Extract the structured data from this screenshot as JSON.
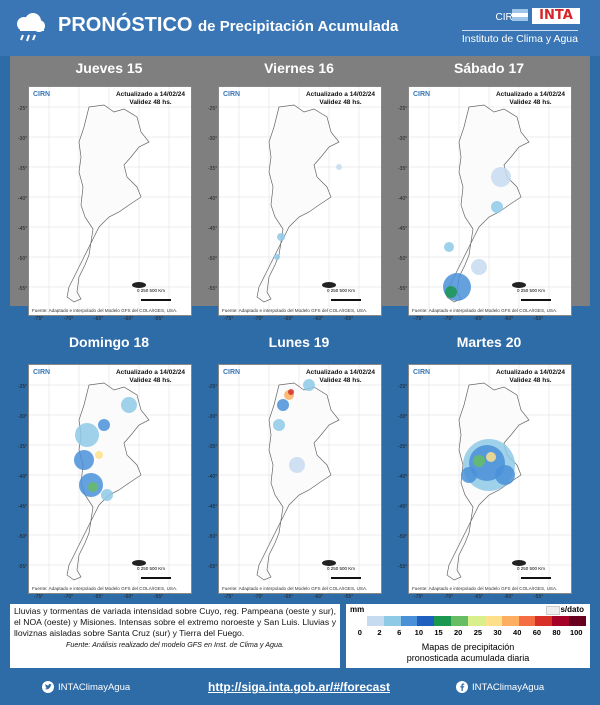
{
  "header": {
    "title_big": "PRONÓSTICO",
    "title_rest": "de Precipitación Acumulada",
    "cirn": "CIRN",
    "institute": "Instituto de Clima y Agua",
    "inta": "INTA",
    "icon": "rain-cloud-icon"
  },
  "panels": [
    {
      "day": "Jueves 15"
    },
    {
      "day": "Viernes 16"
    },
    {
      "day": "Sábado 17"
    },
    {
      "day": "Domingo 18"
    },
    {
      "day": "Lunes 19"
    },
    {
      "day": "Martes 20"
    }
  ],
  "map_common": {
    "logo_cirn": "CIRN",
    "logo_sub": "Instituto de Clima y Agua",
    "updated": "Actualizado a 14/02/24",
    "validity": "Validez 48 hs.",
    "source": "Fuente: Adaptado e interpolado del Modelo GFS del COLA/IGES, USA.",
    "lon_labels": [
      "-75°",
      "-70°",
      "-65°",
      "-60°",
      "-55°"
    ],
    "lat_labels": [
      "-25°",
      "-30°",
      "-35°",
      "-40°",
      "-45°",
      "-50°",
      "-55°"
    ],
    "scale": [
      "0",
      "250",
      "500 Km"
    ]
  },
  "bottom": {
    "text": "Lluvias y tormentas de variada intensidad sobre Cuyo, reg. Pampeana (oeste y sur), el NOA (oeste) y Misiones. Intensas sobre el extremo noroeste y San Luis. Lluvias y lloviznas aisladas sobre Santa Cruz (sur) y Tierra del Fuego.",
    "fuente": "Fuente: Análisis realizado del modelo GFS en Inst. de Clima y Agua."
  },
  "legend": {
    "unit": "mm",
    "no_data": "s/dato",
    "ticks": [
      "0",
      "2",
      "6",
      "10",
      "15",
      "20",
      "25",
      "30",
      "40",
      "60",
      "80",
      "100"
    ],
    "colors": [
      "#ffffff",
      "#c6dbef",
      "#8ecae6",
      "#4a90d9",
      "#1f5fbf",
      "#1a9850",
      "#66bd63",
      "#d9ef8b",
      "#fee08b",
      "#fdae61",
      "#f46d43",
      "#d73027",
      "#a50026",
      "#67001f"
    ],
    "caption_1": "Mapas de precipitación",
    "caption_2": "pronosticada acumulada diaria"
  },
  "footer": {
    "twitter": "INTAClimayAgua",
    "url": "http://siga.inta.gob.ar/#/forecast",
    "facebook": "INTAClimayAgua"
  }
}
